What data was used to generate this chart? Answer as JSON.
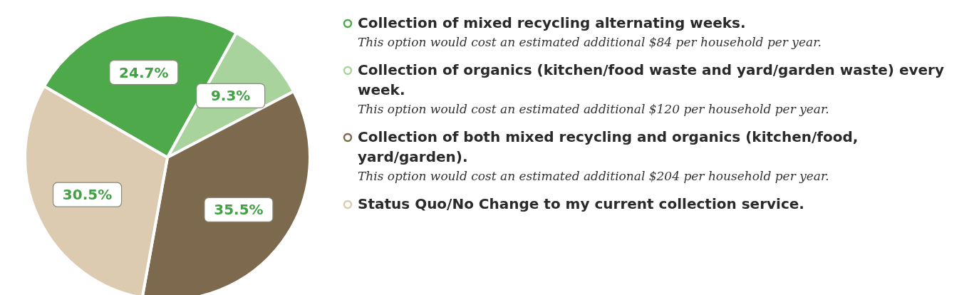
{
  "chart_data": {
    "type": "pie",
    "categories": [
      "Collection of mixed recycling alternating weeks.",
      "Collection of organics (kitchen/food waste and yard/garden waste) every week.",
      "Collection of both mixed recycling and organics (kitchen/food, yard/garden).",
      "Status Quo/No Change to my current collection service."
    ],
    "values": [
      24.7,
      9.3,
      35.5,
      30.5
    ],
    "value_labels": [
      "24.7%",
      "9.3%",
      "35.5%",
      "30.5%"
    ],
    "colors": [
      "#4ea94a",
      "#a9d39d",
      "#7d6a4e",
      "#dccbb0"
    ],
    "annotations": [
      "This option would cost an estimated additional $84 per household per year.",
      "This option would cost an estimated additional $120 per household per year.",
      "This option would cost an estimated additional $204 per household per year."
    ],
    "legend": "right"
  }
}
